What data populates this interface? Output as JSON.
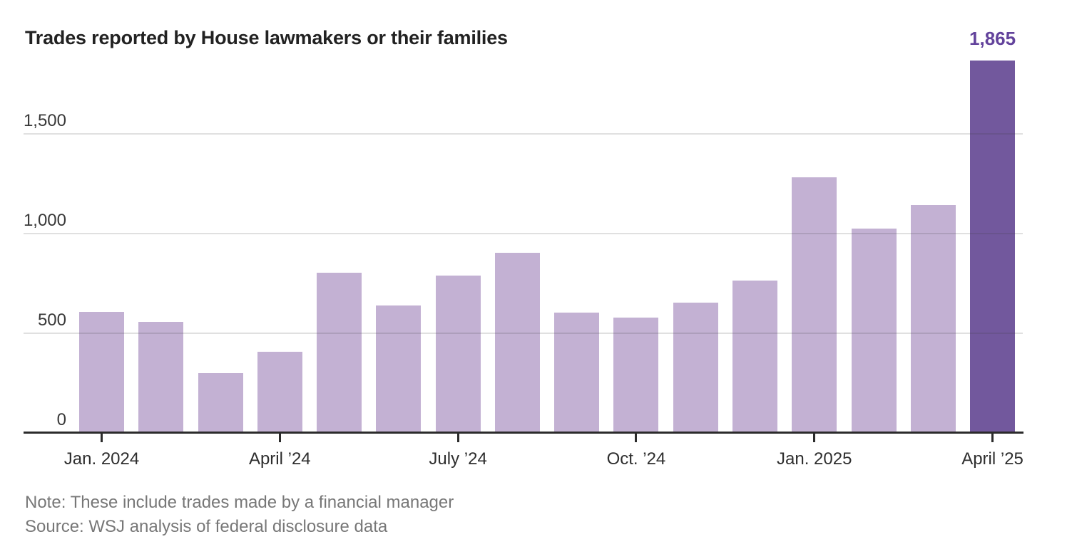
{
  "title": "Trades reported by House lawmakers or their families",
  "highlight": {
    "label": "1,865"
  },
  "note": "Note: These include trades made by a financial manager",
  "source": "Source: WSJ analysis of federal disclosure data",
  "colors": {
    "bar": "#c3b1d3",
    "bar_highlight": "#72589d",
    "accent_text": "#63439c",
    "title_text": "#222222",
    "muted_text": "#777777"
  },
  "chart_data": {
    "type": "bar",
    "title": "Trades reported by House lawmakers or their families",
    "categories": [
      "Jan. 2024",
      "Feb. 2024",
      "March 2024",
      "April 2024",
      "May 2024",
      "June 2024",
      "July 2024",
      "Aug. 2024",
      "Sept. 2024",
      "Oct. 2024",
      "Nov. 2024",
      "Dec. 2024",
      "Jan. 2025",
      "Feb. 2025",
      "March 2025",
      "April 2025"
    ],
    "values": [
      605,
      555,
      295,
      405,
      800,
      635,
      785,
      900,
      600,
      575,
      650,
      760,
      1280,
      1020,
      1140,
      1865
    ],
    "highlight_index": 15,
    "annotation": {
      "index": 15,
      "text": "1,865"
    },
    "xlabel": "",
    "ylabel": "",
    "ylim": [
      0,
      1900
    ],
    "grid": true,
    "legend": false,
    "yticks": [
      {
        "value": 0,
        "label": "0"
      },
      {
        "value": 500,
        "label": "500"
      },
      {
        "value": 1000,
        "label": "1,000"
      },
      {
        "value": 1500,
        "label": "1,500"
      }
    ],
    "x_tick_labels": [
      {
        "index": 0,
        "label": "Jan. 2024"
      },
      {
        "index": 3,
        "label": "April ’24"
      },
      {
        "index": 6,
        "label": "July ’24"
      },
      {
        "index": 9,
        "label": "Oct. ’24"
      },
      {
        "index": 12,
        "label": "Jan. 2025"
      },
      {
        "index": 15,
        "label": "April ’25"
      }
    ]
  }
}
